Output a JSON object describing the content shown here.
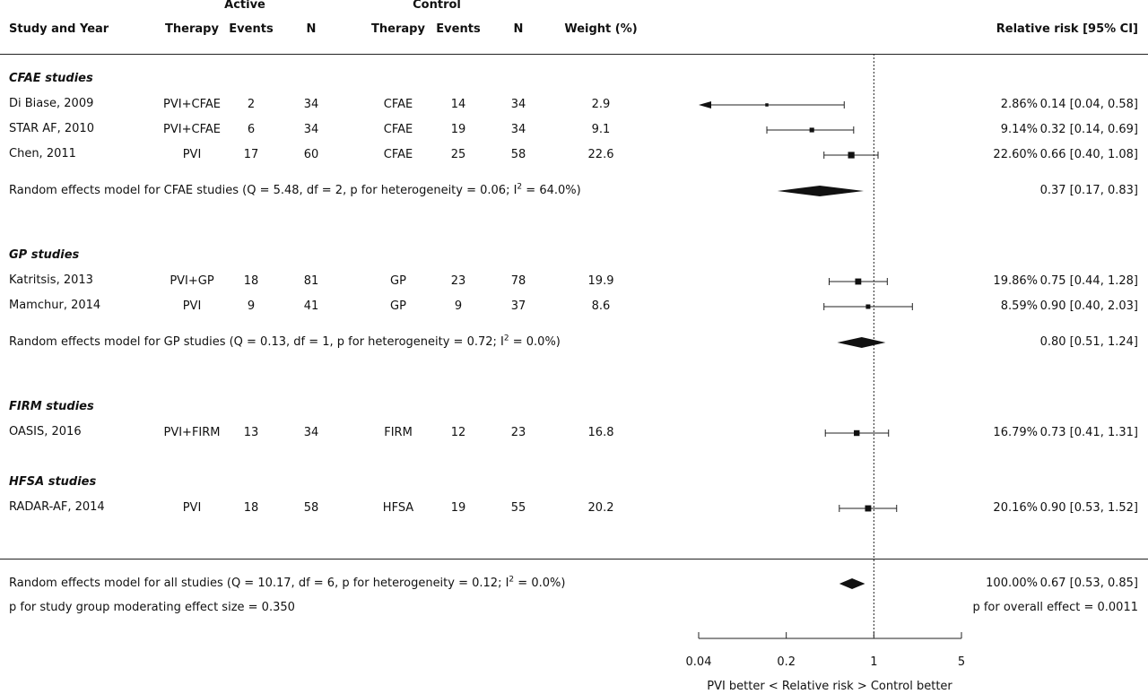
{
  "headers": {
    "active_group": "Active",
    "control_group": "Control",
    "study_and_year": "Study and Year",
    "therapy": "Therapy",
    "events": "Events",
    "n": "N",
    "weight": "Weight (%)",
    "relative_risk": "Relative risk [95% CI]"
  },
  "groups": [
    {
      "name": "CFAE studies",
      "studies": [
        {
          "study": "Di Biase, 2009",
          "active_therapy": "PVI+CFAE",
          "active_events": "2",
          "active_n": "34",
          "control_therapy": "CFAE",
          "control_events": "14",
          "control_n": "34",
          "weight": "2.9",
          "weight_pct": "2.86%",
          "ci_text": "0.14 [0.04, 0.58]",
          "rr": 0.14,
          "lo": 0.04,
          "hi": 0.58,
          "arrow_left": true
        },
        {
          "study": "STAR AF, 2010",
          "active_therapy": "PVI+CFAE",
          "active_events": "6",
          "active_n": "34",
          "control_therapy": "CFAE",
          "control_events": "19",
          "control_n": "34",
          "weight": "9.1",
          "weight_pct": "9.14%",
          "ci_text": "0.32 [0.14, 0.69]",
          "rr": 0.32,
          "lo": 0.14,
          "hi": 0.69,
          "arrow_left": false
        },
        {
          "study": "Chen, 2011",
          "active_therapy": "PVI",
          "active_events": "17",
          "active_n": "60",
          "control_therapy": "CFAE",
          "control_events": "25",
          "control_n": "58",
          "weight": "22.6",
          "weight_pct": "22.60%",
          "ci_text": "0.66 [0.40, 1.08]",
          "rr": 0.66,
          "lo": 0.4,
          "hi": 1.08,
          "arrow_left": false
        }
      ],
      "summary": {
        "label_main": "Random effects model for CFAE studies (Q = 5.48, df = 2, p for heterogeneity = 0.06; I",
        "label_sup": "2",
        "label_tail": " = 64.0%)",
        "weight_pct": "",
        "ci_text": "0.37 [0.17, 0.83]",
        "rr": 0.37,
        "lo": 0.17,
        "hi": 0.83
      }
    },
    {
      "name": "GP studies",
      "studies": [
        {
          "study": "Katritsis, 2013",
          "active_therapy": "PVI+GP",
          "active_events": "18",
          "active_n": "81",
          "control_therapy": "GP",
          "control_events": "23",
          "control_n": "78",
          "weight": "19.9",
          "weight_pct": "19.86%",
          "ci_text": "0.75 [0.44, 1.28]",
          "rr": 0.75,
          "lo": 0.44,
          "hi": 1.28,
          "arrow_left": false
        },
        {
          "study": "Mamchur, 2014",
          "active_therapy": "PVI",
          "active_events": "9",
          "active_n": "41",
          "control_therapy": "GP",
          "control_events": "9",
          "control_n": "37",
          "weight": "8.6",
          "weight_pct": "8.59%",
          "ci_text": "0.90 [0.40, 2.03]",
          "rr": 0.9,
          "lo": 0.4,
          "hi": 2.03,
          "arrow_left": false
        }
      ],
      "summary": {
        "label_main": "Random effects model for GP studies (Q = 0.13, df = 1, p for heterogeneity = 0.72; I",
        "label_sup": "2",
        "label_tail": " = 0.0%)",
        "weight_pct": "",
        "ci_text": "0.80 [0.51, 1.24]",
        "rr": 0.8,
        "lo": 0.51,
        "hi": 1.24
      }
    },
    {
      "name": "FIRM studies",
      "studies": [
        {
          "study": "OASIS, 2016",
          "active_therapy": "PVI+FIRM",
          "active_events": "13",
          "active_n": "34",
          "control_therapy": "FIRM",
          "control_events": "12",
          "control_n": "23",
          "weight": "16.8",
          "weight_pct": "16.79%",
          "ci_text": "0.73 [0.41, 1.31]",
          "rr": 0.73,
          "lo": 0.41,
          "hi": 1.31,
          "arrow_left": false
        }
      ],
      "summary": null
    },
    {
      "name": "HFSA studies",
      "studies": [
        {
          "study": "RADAR-AF, 2014",
          "active_therapy": "PVI",
          "active_events": "18",
          "active_n": "58",
          "control_therapy": "HFSA",
          "control_events": "19",
          "control_n": "55",
          "weight": "20.2",
          "weight_pct": "20.16%",
          "ci_text": "0.90 [0.53, 1.52]",
          "rr": 0.9,
          "lo": 0.53,
          "hi": 1.52,
          "arrow_left": false
        }
      ],
      "summary": null
    }
  ],
  "overall": {
    "label_main": "Random effects model for all studies (Q = 10.17, df = 6, p for heterogeneity = 0.12; I",
    "label_sup": "2",
    "label_tail": " = 0.0%)",
    "weight_pct": "100.00%",
    "ci_text": "0.67 [0.53, 0.85]",
    "rr": 0.67,
    "lo": 0.53,
    "hi": 0.85,
    "moderator_text": "p for study group moderating effect size =  0.350",
    "overall_effect_text": "p for overall effect = 0.0011"
  },
  "chart_data": {
    "type": "forest",
    "x_scale": "log",
    "xlim": [
      0.04,
      5
    ],
    "reference_line": 1,
    "ticks": [
      0.04,
      0.2,
      1,
      5
    ],
    "tick_labels": [
      "0.04",
      "0.2",
      "1",
      "5"
    ],
    "xlabel": "PVI better  <  Relative risk  >  Control better",
    "points": [
      {
        "label": "Di Biase, 2009",
        "rr": 0.14,
        "lo": 0.04,
        "hi": 0.58,
        "weight": 2.86
      },
      {
        "label": "STAR AF, 2010",
        "rr": 0.32,
        "lo": 0.14,
        "hi": 0.69,
        "weight": 9.14
      },
      {
        "label": "Chen, 2011",
        "rr": 0.66,
        "lo": 0.4,
        "hi": 1.08,
        "weight": 22.6
      },
      {
        "label": "Katritsis, 2013",
        "rr": 0.75,
        "lo": 0.44,
        "hi": 1.28,
        "weight": 19.86
      },
      {
        "label": "Mamchur, 2014",
        "rr": 0.9,
        "lo": 0.4,
        "hi": 2.03,
        "weight": 8.59
      },
      {
        "label": "OASIS, 2016",
        "rr": 0.73,
        "lo": 0.41,
        "hi": 1.31,
        "weight": 16.79
      },
      {
        "label": "RADAR-AF, 2014",
        "rr": 0.9,
        "lo": 0.53,
        "hi": 1.52,
        "weight": 20.16
      }
    ],
    "summaries": [
      {
        "label": "CFAE studies",
        "rr": 0.37,
        "lo": 0.17,
        "hi": 0.83
      },
      {
        "label": "GP studies",
        "rr": 0.8,
        "lo": 0.51,
        "hi": 1.24
      },
      {
        "label": "all studies",
        "rr": 0.67,
        "lo": 0.53,
        "hi": 0.85
      }
    ]
  }
}
